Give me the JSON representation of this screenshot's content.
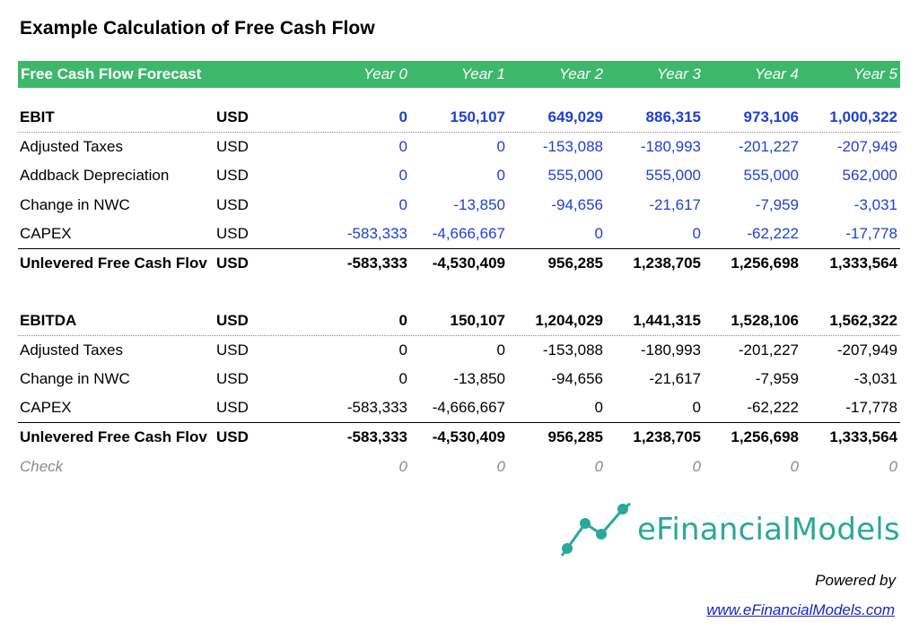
{
  "title": "Example Calculation of Free Cash Flow",
  "header": {
    "label": "Free Cash Flow Forecast",
    "years": [
      "Year 0",
      "Year 1",
      "Year 2",
      "Year 3",
      "Year 4",
      "Year 5"
    ]
  },
  "section1": {
    "rows": [
      {
        "label": "EBIT",
        "unit": "USD",
        "values": [
          "0",
          "150,107",
          "649,029",
          "886,315",
          "973,106",
          "1,000,322"
        ]
      },
      {
        "label": "Adjusted Taxes",
        "unit": "USD",
        "values": [
          "0",
          "0",
          "-153,088",
          "-180,993",
          "-201,227",
          "-207,949"
        ]
      },
      {
        "label": "Addback Depreciation",
        "unit": "USD",
        "values": [
          "0",
          "0",
          "555,000",
          "555,000",
          "555,000",
          "562,000"
        ]
      },
      {
        "label": "Change in NWC",
        "unit": "USD",
        "values": [
          "0",
          "-13,850",
          "-94,656",
          "-21,617",
          "-7,959",
          "-3,031"
        ]
      },
      {
        "label": "CAPEX",
        "unit": "USD",
        "values": [
          "-583,333",
          "-4,666,667",
          "0",
          "0",
          "-62,222",
          "-17,778"
        ]
      },
      {
        "label": "Unlevered Free Cash Flov",
        "unit": "USD",
        "values": [
          "-583,333",
          "-4,530,409",
          "956,285",
          "1,238,705",
          "1,256,698",
          "1,333,564"
        ]
      }
    ]
  },
  "section2": {
    "rows": [
      {
        "label": "EBITDA",
        "unit": "USD",
        "values": [
          "0",
          "150,107",
          "1,204,029",
          "1,441,315",
          "1,528,106",
          "1,562,322"
        ]
      },
      {
        "label": "Adjusted Taxes",
        "unit": "USD",
        "values": [
          "0",
          "0",
          "-153,088",
          "-180,993",
          "-201,227",
          "-207,949"
        ]
      },
      {
        "label": "Change in NWC",
        "unit": "USD",
        "values": [
          "0",
          "-13,850",
          "-94,656",
          "-21,617",
          "-7,959",
          "-3,031"
        ]
      },
      {
        "label": "CAPEX",
        "unit": "USD",
        "values": [
          "-583,333",
          "-4,666,667",
          "0",
          "0",
          "-62,222",
          "-17,778"
        ]
      },
      {
        "label": "Unlevered Free Cash Flov",
        "unit": "USD",
        "values": [
          "-583,333",
          "-4,530,409",
          "956,285",
          "1,238,705",
          "1,256,698",
          "1,333,564"
        ]
      },
      {
        "label": "Check",
        "unit": "",
        "values": [
          "0",
          "0",
          "0",
          "0",
          "0",
          "0"
        ]
      }
    ]
  },
  "branding": {
    "logo_text": "eFinancialModels",
    "logo_icon": "line-chart-icon",
    "powered_by": "Powered by",
    "url": "www.eFinancialModels.com"
  },
  "colors": {
    "header_green": "#3db86b",
    "input_blue": "#1f3fd6",
    "brand_teal": "#2aa899",
    "link_blue": "#1a24c8"
  }
}
